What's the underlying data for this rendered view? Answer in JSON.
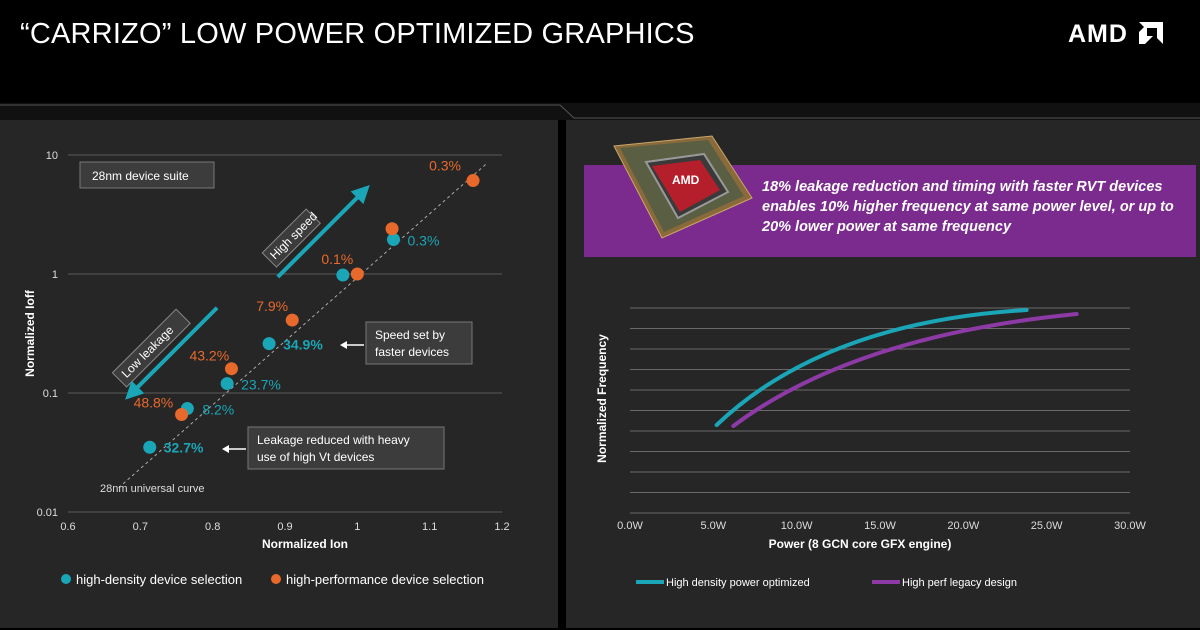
{
  "header": {
    "title": "“CARRIZO” LOW POWER OPTIMIZED GRAPHICS",
    "logo_text": "AMD",
    "logo_icon": "amd-arrow-icon"
  },
  "banner": {
    "text": "18% leakage reduction and timing with faster RVT devices enables 10% higher frequency at same power level, or  up to 20% lower power at same frequency",
    "chip_label": "AMD",
    "color": "#7b2a8e"
  },
  "chart_data": [
    {
      "type": "scatter",
      "xlabel": "Normalized Ion",
      "ylabel": "Normalized Ioff",
      "xlim": [
        0.6,
        1.2
      ],
      "ylim": [
        0.01,
        10
      ],
      "yscale": "log",
      "x_ticks": [
        "0.6",
        "0.7",
        "0.8",
        "0.9",
        "1",
        "1.1",
        "1.2"
      ],
      "y_ticks": [
        "0.01",
        "0.1",
        "1",
        "10"
      ],
      "grid": "horizontal",
      "series": [
        {
          "name": "high-density device selection",
          "color": "#1aa6b7",
          "points": [
            {
              "x": 0.713,
              "y": 0.035,
              "label": "32.7%",
              "bold": true
            },
            {
              "x": 0.765,
              "y": 0.074,
              "label": "8.2%",
              "bold": false
            },
            {
              "x": 0.82,
              "y": 0.12,
              "label": "23.7%",
              "bold": false
            },
            {
              "x": 0.878,
              "y": 0.26,
              "label": "34.9%",
              "bold": true
            },
            {
              "x": 0.98,
              "y": 0.98,
              "label": "",
              "bold": false
            },
            {
              "x": 1.05,
              "y": 1.95,
              "label": "0.3%",
              "bold": false
            }
          ]
        },
        {
          "name": "high-performance device selection",
          "color": "#e8692c",
          "points": [
            {
              "x": 0.757,
              "y": 0.066,
              "label": "48.8%"
            },
            {
              "x": 0.826,
              "y": 0.16,
              "label": "43.2%"
            },
            {
              "x": 0.91,
              "y": 0.41,
              "label": "7.9%"
            },
            {
              "x": 1.0,
              "y": 1.0,
              "label": "0.1%"
            },
            {
              "x": 1.048,
              "y": 2.4,
              "label": ""
            },
            {
              "x": 1.16,
              "y": 6.1,
              "label": "0.3%"
            }
          ]
        }
      ],
      "annotations": {
        "suite": "28nm device suite",
        "high_speed": "High speed",
        "low_leakage": "Low leakage",
        "speed_note": [
          "Speed set by",
          "faster devices"
        ],
        "leak_note": [
          "Leakage reduced with heavy",
          "use of high Vt devices"
        ],
        "curve_label": "28nm universal curve"
      }
    },
    {
      "type": "line",
      "xlabel": "Power  (8  GCN core GFX engine)",
      "ylabel": "Normalized Frequency",
      "xlim": [
        0,
        30
      ],
      "x_ticks": [
        "0.0W",
        "5.0W",
        "10.0W",
        "15.0W",
        "20.0W",
        "25.0W",
        "30.0W"
      ],
      "grid": "horizontal",
      "series": [
        {
          "name": "High density power optimized",
          "color": "#1aa6b7",
          "x_start": 5.2,
          "x_end": 23.8
        },
        {
          "name": "High perf legacy design",
          "color": "#8e3aa6",
          "x_start": 6.2,
          "x_end": 26.8
        }
      ]
    }
  ]
}
